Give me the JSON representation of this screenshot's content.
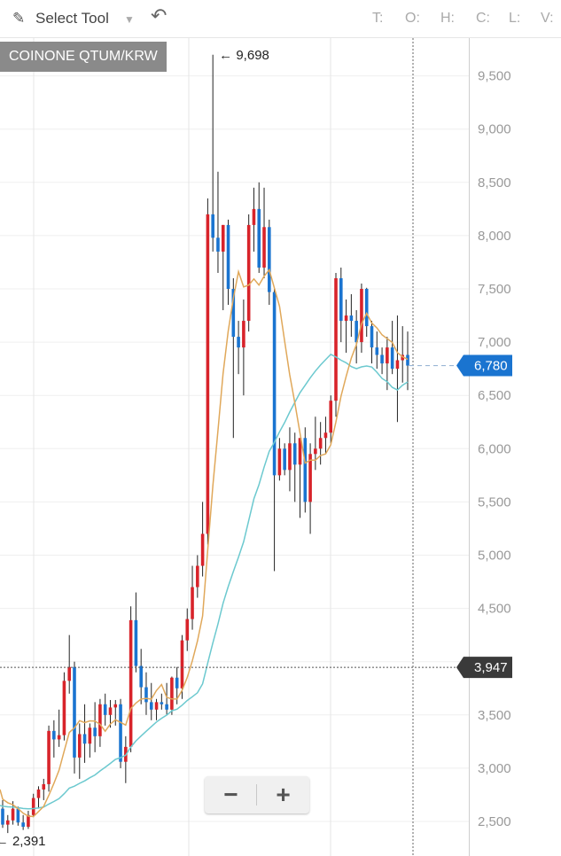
{
  "toolbar": {
    "tool_label": "Select Tool",
    "ohlc_labels": [
      "T:",
      "O:",
      "H:",
      "C:",
      "L:",
      "V:"
    ]
  },
  "symbol": "COINONE QTUM/KRW",
  "colors": {
    "up": "#d8232a",
    "down": "#1a74d0",
    "ma_short": "#e0a85a",
    "ma_long": "#6cc9cf",
    "last_price_badge": "#1a74d0",
    "crosshair_badge": "#3a3a3a"
  },
  "chart_data": {
    "type": "candlestick",
    "y_range": [
      2300,
      9850
    ],
    "y_ticks": [
      {
        "value": 2500,
        "label": "2,500"
      },
      {
        "value": 3000,
        "label": "3,000"
      },
      {
        "value": 3500,
        "label": "3,500"
      },
      {
        "value": 4000,
        "label": "4,000"
      },
      {
        "value": 4500,
        "label": "4,500"
      },
      {
        "value": 5000,
        "label": "5,000"
      },
      {
        "value": 5500,
        "label": "5,500"
      },
      {
        "value": 6000,
        "label": "6,000"
      },
      {
        "value": 6500,
        "label": "6,500"
      },
      {
        "value": 7000,
        "label": "7,000"
      },
      {
        "value": 7500,
        "label": "7,500"
      },
      {
        "value": 8000,
        "label": "8,000"
      },
      {
        "value": 8500,
        "label": "8,500"
      },
      {
        "value": 9000,
        "label": "9,000"
      },
      {
        "value": 9500,
        "label": "9,500"
      }
    ],
    "grid": true,
    "annotations": {
      "high_label": "← 9,698",
      "high_value": 9698,
      "low_label": "← 2,391",
      "low_value": 2391
    },
    "last_price": {
      "label": "6,780",
      "value": 6780
    },
    "crosshair": {
      "label": "3,947",
      "value": 3947
    },
    "candles": [
      {
        "o": 2620,
        "h": 2700,
        "l": 2440,
        "c": 2470
      },
      {
        "o": 2470,
        "h": 2560,
        "l": 2391,
        "c": 2510
      },
      {
        "o": 2510,
        "h": 2690,
        "l": 2470,
        "c": 2620
      },
      {
        "o": 2620,
        "h": 2640,
        "l": 2460,
        "c": 2490
      },
      {
        "o": 2490,
        "h": 2560,
        "l": 2420,
        "c": 2450
      },
      {
        "o": 2450,
        "h": 2600,
        "l": 2430,
        "c": 2560
      },
      {
        "o": 2560,
        "h": 2760,
        "l": 2540,
        "c": 2720
      },
      {
        "o": 2720,
        "h": 2830,
        "l": 2620,
        "c": 2800
      },
      {
        "o": 2800,
        "h": 2900,
        "l": 2700,
        "c": 2850
      },
      {
        "o": 2850,
        "h": 3400,
        "l": 2780,
        "c": 3350
      },
      {
        "o": 3350,
        "h": 3450,
        "l": 3100,
        "c": 3270
      },
      {
        "o": 3270,
        "h": 3550,
        "l": 3200,
        "c": 3310
      },
      {
        "o": 3310,
        "h": 3900,
        "l": 3260,
        "c": 3820
      },
      {
        "o": 3820,
        "h": 4250,
        "l": 3700,
        "c": 3950
      },
      {
        "o": 3950,
        "h": 4000,
        "l": 2950,
        "c": 3100
      },
      {
        "o": 3100,
        "h": 3420,
        "l": 2900,
        "c": 3320
      },
      {
        "o": 3320,
        "h": 3600,
        "l": 3050,
        "c": 3230
      },
      {
        "o": 3230,
        "h": 3420,
        "l": 3100,
        "c": 3380
      },
      {
        "o": 3380,
        "h": 3620,
        "l": 3150,
        "c": 3300
      },
      {
        "o": 3300,
        "h": 3650,
        "l": 3200,
        "c": 3600
      },
      {
        "o": 3600,
        "h": 3700,
        "l": 3400,
        "c": 3500
      },
      {
        "o": 3500,
        "h": 3640,
        "l": 3380,
        "c": 3570
      },
      {
        "o": 3570,
        "h": 3640,
        "l": 3400,
        "c": 3600
      },
      {
        "o": 3600,
        "h": 3650,
        "l": 3000,
        "c": 3060
      },
      {
        "o": 3060,
        "h": 3300,
        "l": 2860,
        "c": 3200
      },
      {
        "o": 3200,
        "h": 4520,
        "l": 3150,
        "c": 4390
      },
      {
        "o": 4390,
        "h": 4650,
        "l": 3900,
        "c": 3960
      },
      {
        "o": 3960,
        "h": 4120,
        "l": 3600,
        "c": 3760
      },
      {
        "o": 3760,
        "h": 3900,
        "l": 3500,
        "c": 3620
      },
      {
        "o": 3620,
        "h": 3800,
        "l": 3450,
        "c": 3550
      },
      {
        "o": 3550,
        "h": 3650,
        "l": 3450,
        "c": 3620
      },
      {
        "o": 3620,
        "h": 3700,
        "l": 3550,
        "c": 3600
      },
      {
        "o": 3600,
        "h": 3800,
        "l": 3500,
        "c": 3550
      },
      {
        "o": 3550,
        "h": 3860,
        "l": 3500,
        "c": 3850
      },
      {
        "o": 3850,
        "h": 3950,
        "l": 3600,
        "c": 3750
      },
      {
        "o": 3750,
        "h": 4250,
        "l": 3650,
        "c": 4200
      },
      {
        "o": 4200,
        "h": 4500,
        "l": 4100,
        "c": 4400
      },
      {
        "o": 4400,
        "h": 4900,
        "l": 4300,
        "c": 4700
      },
      {
        "o": 4700,
        "h": 5000,
        "l": 4600,
        "c": 4900
      },
      {
        "o": 4900,
        "h": 5500,
        "l": 4800,
        "c": 5200
      },
      {
        "o": 5200,
        "h": 8350,
        "l": 5100,
        "c": 8200
      },
      {
        "o": 8200,
        "h": 9698,
        "l": 7850,
        "c": 7980
      },
      {
        "o": 7980,
        "h": 8600,
        "l": 7650,
        "c": 7850
      },
      {
        "o": 7850,
        "h": 8100,
        "l": 7300,
        "c": 8100
      },
      {
        "o": 8100,
        "h": 8150,
        "l": 7350,
        "c": 7500
      },
      {
        "o": 7500,
        "h": 7600,
        "l": 6100,
        "c": 7050
      },
      {
        "o": 7050,
        "h": 7200,
        "l": 6700,
        "c": 6950
      },
      {
        "o": 6950,
        "h": 7400,
        "l": 6500,
        "c": 7200
      },
      {
        "o": 7200,
        "h": 8200,
        "l": 7100,
        "c": 8100
      },
      {
        "o": 8100,
        "h": 8450,
        "l": 7850,
        "c": 8250
      },
      {
        "o": 8250,
        "h": 8500,
        "l": 7650,
        "c": 7700
      },
      {
        "o": 7700,
        "h": 8450,
        "l": 7600,
        "c": 8080
      },
      {
        "o": 8080,
        "h": 8150,
        "l": 7350,
        "c": 7470
      },
      {
        "o": 7470,
        "h": 7500,
        "l": 4850,
        "c": 5750
      },
      {
        "o": 5750,
        "h": 6100,
        "l": 5700,
        "c": 6000
      },
      {
        "o": 6000,
        "h": 6050,
        "l": 5750,
        "c": 5800
      },
      {
        "o": 5800,
        "h": 6200,
        "l": 5600,
        "c": 6050
      },
      {
        "o": 6050,
        "h": 6150,
        "l": 5500,
        "c": 5850
      },
      {
        "o": 5850,
        "h": 6100,
        "l": 5350,
        "c": 6100
      },
      {
        "o": 6100,
        "h": 6200,
        "l": 5400,
        "c": 5500
      },
      {
        "o": 5500,
        "h": 6050,
        "l": 5200,
        "c": 5950
      },
      {
        "o": 5950,
        "h": 6300,
        "l": 5800,
        "c": 6000
      },
      {
        "o": 6000,
        "h": 6250,
        "l": 5850,
        "c": 6100
      },
      {
        "o": 6100,
        "h": 6300,
        "l": 5950,
        "c": 6150
      },
      {
        "o": 6150,
        "h": 6500,
        "l": 6050,
        "c": 6450
      },
      {
        "o": 6450,
        "h": 7650,
        "l": 6300,
        "c": 7600
      },
      {
        "o": 7600,
        "h": 7700,
        "l": 7000,
        "c": 7200
      },
      {
        "o": 7200,
        "h": 7400,
        "l": 6900,
        "c": 7250
      },
      {
        "o": 7250,
        "h": 7450,
        "l": 7050,
        "c": 7200
      },
      {
        "o": 7200,
        "h": 7300,
        "l": 6800,
        "c": 7000
      },
      {
        "o": 7000,
        "h": 7550,
        "l": 6900,
        "c": 7500
      },
      {
        "o": 7500,
        "h": 7510,
        "l": 7050,
        "c": 7150
      },
      {
        "o": 7150,
        "h": 7200,
        "l": 6800,
        "c": 6950
      },
      {
        "o": 6950,
        "h": 7100,
        "l": 6750,
        "c": 6880
      },
      {
        "o": 6880,
        "h": 6950,
        "l": 6700,
        "c": 6800
      },
      {
        "o": 6800,
        "h": 7050,
        "l": 6550,
        "c": 6950
      },
      {
        "o": 6950,
        "h": 7200,
        "l": 6700,
        "c": 6750
      },
      {
        "o": 6750,
        "h": 7250,
        "l": 6250,
        "c": 6830
      },
      {
        "o": 6830,
        "h": 7150,
        "l": 6620,
        "c": 6880
      },
      {
        "o": 6880,
        "h": 7100,
        "l": 6550,
        "c": 6780
      }
    ]
  }
}
